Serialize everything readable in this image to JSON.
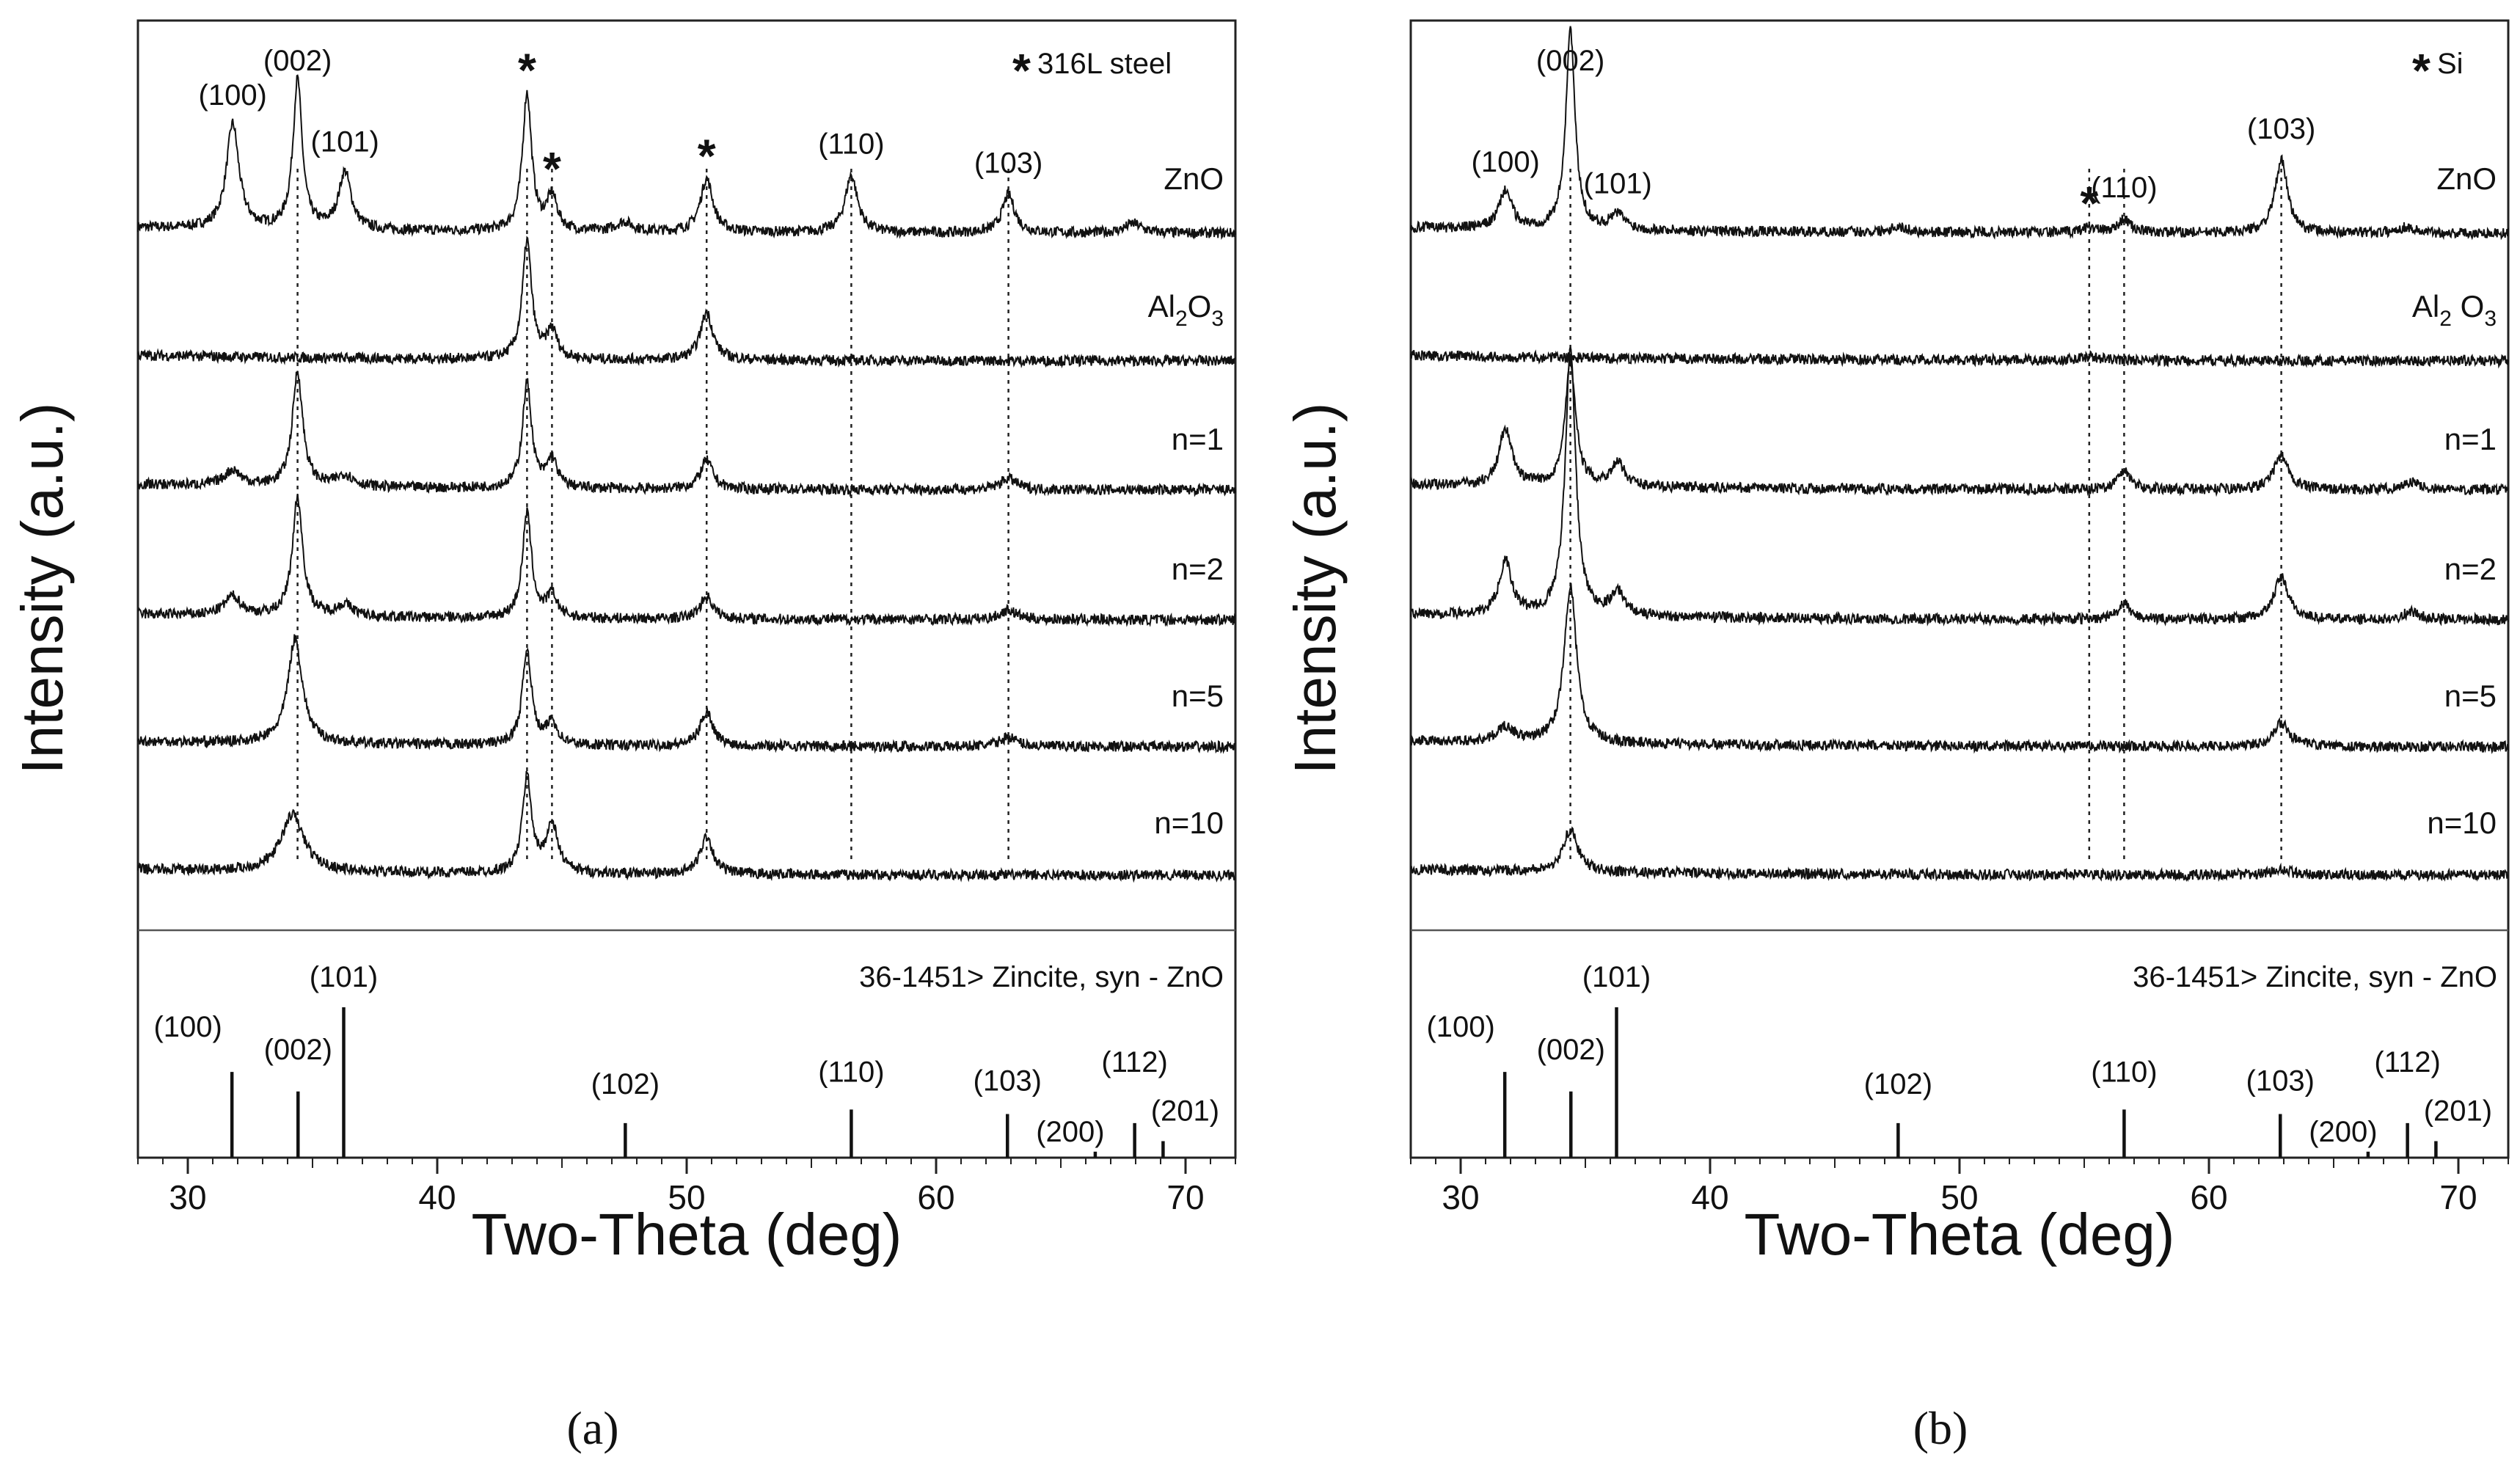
{
  "chart_data": [
    {
      "panel": "(a)",
      "type": "line",
      "substrate": "316L steel",
      "legend": "316L steel",
      "legend_marker": "*",
      "xlabel": "Two-Theta (deg)",
      "ylabel": "Intensity (a.u.)",
      "xlim": [
        28,
        72
      ],
      "xticks": [
        "30",
        "40",
        "50",
        "60",
        "70"
      ],
      "star_label": "*",
      "series": [
        {
          "name": "ZnO",
          "display": [
            "ZnO"
          ],
          "peaks": [
            {
              "x": 31.8,
              "h": 0.55,
              "w": 0.3
            },
            {
              "x": 34.4,
              "h": 0.78,
              "w": 0.22
            },
            {
              "x": 36.3,
              "h": 0.3,
              "w": 0.3
            },
            {
              "x": 43.6,
              "h": 0.72,
              "w": 0.22
            },
            {
              "x": 44.6,
              "h": 0.18,
              "w": 0.25
            },
            {
              "x": 50.8,
              "h": 0.28,
              "w": 0.3
            },
            {
              "x": 56.6,
              "h": 0.3,
              "w": 0.3
            },
            {
              "x": 62.9,
              "h": 0.2,
              "w": 0.3
            },
            {
              "x": 47.5,
              "h": 0.05,
              "w": 0.4
            },
            {
              "x": 67.9,
              "h": 0.05,
              "w": 0.4
            }
          ]
        },
        {
          "name": "Al2O3",
          "display": [
            "Al",
            "2",
            "O",
            "3"
          ],
          "peaks": [
            {
              "x": 43.6,
              "h": 0.62,
              "w": 0.22
            },
            {
              "x": 44.6,
              "h": 0.15,
              "w": 0.25
            },
            {
              "x": 50.8,
              "h": 0.25,
              "w": 0.3
            }
          ]
        },
        {
          "name": "n=1",
          "display": [
            "n=1"
          ],
          "peaks": [
            {
              "x": 31.8,
              "h": 0.08,
              "w": 0.4
            },
            {
              "x": 34.4,
              "h": 0.6,
              "w": 0.25
            },
            {
              "x": 36.3,
              "h": 0.06,
              "w": 0.4
            },
            {
              "x": 43.6,
              "h": 0.55,
              "w": 0.22
            },
            {
              "x": 44.6,
              "h": 0.15,
              "w": 0.25
            },
            {
              "x": 50.8,
              "h": 0.15,
              "w": 0.3
            },
            {
              "x": 62.9,
              "h": 0.06,
              "w": 0.4
            }
          ]
        },
        {
          "name": "n=2",
          "display": [
            "n=2"
          ],
          "peaks": [
            {
              "x": 31.8,
              "h": 0.1,
              "w": 0.4
            },
            {
              "x": 34.4,
              "h": 0.62,
              "w": 0.25
            },
            {
              "x": 36.3,
              "h": 0.06,
              "w": 0.4
            },
            {
              "x": 43.6,
              "h": 0.55,
              "w": 0.22
            },
            {
              "x": 44.6,
              "h": 0.12,
              "w": 0.25
            },
            {
              "x": 50.8,
              "h": 0.12,
              "w": 0.3
            },
            {
              "x": 62.9,
              "h": 0.05,
              "w": 0.4
            }
          ]
        },
        {
          "name": "n=5",
          "display": [
            "n=5"
          ],
          "peaks": [
            {
              "x": 34.3,
              "h": 0.55,
              "w": 0.35
            },
            {
              "x": 43.6,
              "h": 0.5,
              "w": 0.22
            },
            {
              "x": 44.6,
              "h": 0.12,
              "w": 0.25
            },
            {
              "x": 50.8,
              "h": 0.18,
              "w": 0.3
            },
            {
              "x": 62.9,
              "h": 0.05,
              "w": 0.4
            }
          ]
        },
        {
          "name": "n=10",
          "display": [
            "n=10"
          ],
          "peaks": [
            {
              "x": 34.2,
              "h": 0.3,
              "w": 0.55
            },
            {
              "x": 43.6,
              "h": 0.5,
              "w": 0.22
            },
            {
              "x": 44.6,
              "h": 0.25,
              "w": 0.3
            },
            {
              "x": 50.8,
              "h": 0.2,
              "w": 0.3
            }
          ]
        }
      ],
      "peak_labels": [
        {
          "label": "(100)",
          "x": 31.8
        },
        {
          "label": "(002)",
          "x": 34.4
        },
        {
          "label": "(101)",
          "x": 36.3
        },
        {
          "label": "(110)",
          "x": 56.6
        },
        {
          "label": "(103)",
          "x": 62.9
        }
      ],
      "substrate_peaks": [
        43.6,
        44.6,
        50.8
      ],
      "dotted_lines": [
        34.4,
        43.6,
        44.6,
        50.8,
        56.6,
        62.9
      ],
      "reference": {
        "title": "36-1451> Zincite, syn - ZnO",
        "lines": [
          {
            "label": "(100)",
            "x": 31.77,
            "intensity": 57
          },
          {
            "label": "(002)",
            "x": 34.42,
            "intensity": 44
          },
          {
            "label": "(101)",
            "x": 36.25,
            "intensity": 100
          },
          {
            "label": "(102)",
            "x": 47.54,
            "intensity": 23
          },
          {
            "label": "(110)",
            "x": 56.6,
            "intensity": 32
          },
          {
            "label": "(103)",
            "x": 62.86,
            "intensity": 29
          },
          {
            "label": "(200)",
            "x": 66.38,
            "intensity": 4
          },
          {
            "label": "(112)",
            "x": 67.96,
            "intensity": 23
          },
          {
            "label": "(201)",
            "x": 69.1,
            "intensity": 11
          }
        ]
      }
    },
    {
      "panel": "(b)",
      "type": "line",
      "substrate": "Si",
      "legend": "Si",
      "legend_marker": "*",
      "xlabel": "Two-Theta (deg)",
      "ylabel": "Intensity (a.u.)",
      "xlim": [
        28,
        72
      ],
      "xticks": [
        "30",
        "40",
        "50",
        "60",
        "70"
      ],
      "star_label": "*",
      "series": [
        {
          "name": "ZnO",
          "display": [
            "ZnO"
          ],
          "peaks": [
            {
              "x": 31.8,
              "h": 0.2,
              "w": 0.3
            },
            {
              "x": 34.4,
              "h": 1.05,
              "w": 0.22
            },
            {
              "x": 36.3,
              "h": 0.08,
              "w": 0.35
            },
            {
              "x": 55.2,
              "h": 0.03,
              "w": 0.3
            },
            {
              "x": 56.6,
              "h": 0.07,
              "w": 0.3
            },
            {
              "x": 62.9,
              "h": 0.38,
              "w": 0.3
            },
            {
              "x": 47.5,
              "h": 0.03,
              "w": 0.4
            },
            {
              "x": 67.9,
              "h": 0.03,
              "w": 0.4
            }
          ]
        },
        {
          "name": "Al2 O3",
          "display": [
            "Al",
            "2",
            " O",
            "3"
          ],
          "peaks": [
            {
              "x": 55.2,
              "h": 0.02,
              "w": 0.5
            }
          ]
        },
        {
          "name": "n=1",
          "display": [
            "n=1"
          ],
          "peaks": [
            {
              "x": 31.8,
              "h": 0.3,
              "w": 0.3
            },
            {
              "x": 34.4,
              "h": 0.65,
              "w": 0.25
            },
            {
              "x": 36.3,
              "h": 0.12,
              "w": 0.35
            },
            {
              "x": 56.6,
              "h": 0.1,
              "w": 0.3
            },
            {
              "x": 62.9,
              "h": 0.18,
              "w": 0.35
            },
            {
              "x": 68.1,
              "h": 0.04,
              "w": 0.4
            }
          ]
        },
        {
          "name": "n=2",
          "display": [
            "n=2"
          ],
          "peaks": [
            {
              "x": 31.8,
              "h": 0.28,
              "w": 0.3
            },
            {
              "x": 34.4,
              "h": 1.4,
              "w": 0.25
            },
            {
              "x": 36.3,
              "h": 0.12,
              "w": 0.35
            },
            {
              "x": 56.6,
              "h": 0.08,
              "w": 0.3
            },
            {
              "x": 62.9,
              "h": 0.22,
              "w": 0.35
            },
            {
              "x": 68.1,
              "h": 0.04,
              "w": 0.4
            }
          ]
        },
        {
          "name": "n=5",
          "display": [
            "n=5"
          ],
          "peaks": [
            {
              "x": 31.8,
              "h": 0.08,
              "w": 0.4
            },
            {
              "x": 34.4,
              "h": 0.82,
              "w": 0.3
            },
            {
              "x": 62.9,
              "h": 0.12,
              "w": 0.4
            }
          ]
        },
        {
          "name": "n=10",
          "display": [
            "n=10"
          ],
          "peaks": [
            {
              "x": 34.4,
              "h": 0.22,
              "w": 0.35
            },
            {
              "x": 62.9,
              "h": 0.03,
              "w": 0.4
            }
          ]
        }
      ],
      "peak_labels": [
        {
          "label": "(100)",
          "x": 31.8
        },
        {
          "label": "(002)",
          "x": 34.4
        },
        {
          "label": "(101)",
          "x": 36.3
        },
        {
          "label": "(110)",
          "x": 56.6
        },
        {
          "label": "(103)",
          "x": 62.9
        }
      ],
      "substrate_peaks": [
        55.2
      ],
      "dotted_lines": [
        34.4,
        55.2,
        56.6,
        62.9
      ],
      "reference": {
        "title": "36-1451> Zincite, syn - ZnO",
        "lines": [
          {
            "label": "(100)",
            "x": 31.77,
            "intensity": 57
          },
          {
            "label": "(002)",
            "x": 34.42,
            "intensity": 44
          },
          {
            "label": "(101)",
            "x": 36.25,
            "intensity": 100
          },
          {
            "label": "(102)",
            "x": 47.54,
            "intensity": 23
          },
          {
            "label": "(110)",
            "x": 56.6,
            "intensity": 32
          },
          {
            "label": "(103)",
            "x": 62.86,
            "intensity": 29
          },
          {
            "label": "(200)",
            "x": 66.38,
            "intensity": 4
          },
          {
            "label": "(112)",
            "x": 67.96,
            "intensity": 23
          },
          {
            "label": "(201)",
            "x": 69.1,
            "intensity": 11
          }
        ]
      }
    }
  ]
}
